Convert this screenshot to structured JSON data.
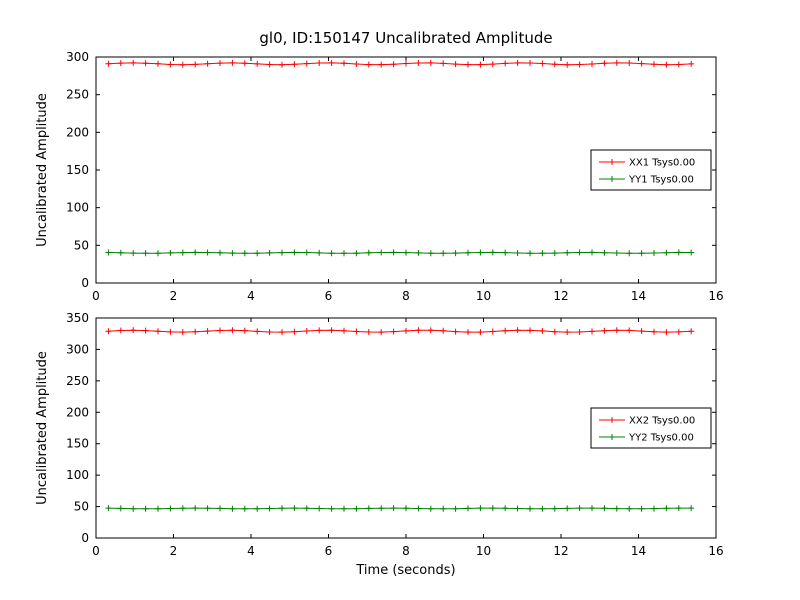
{
  "figure_title": "gl0, ID:150147 Uncalibrated Amplitude",
  "chart_data": [
    {
      "type": "line",
      "title": "gl0, ID:150147 Uncalibrated Amplitude",
      "xlabel": "",
      "ylabel": "Uncalibrated Amplitude",
      "xlim": [
        0,
        16
      ],
      "ylim": [
        0,
        300
      ],
      "xticks": [
        0,
        2,
        4,
        6,
        8,
        10,
        12,
        14,
        16
      ],
      "yticks": [
        0,
        50,
        100,
        150,
        200,
        250,
        300
      ],
      "x_start": 0.32,
      "x_step": 0.32,
      "n_points": 48,
      "grid": false,
      "legend_position": "center right",
      "series": [
        {
          "name": "XX1 Tsys0.00",
          "color": "#ff0000",
          "constant_value": 291,
          "wobble": 1.2
        },
        {
          "name": "YY1 Tsys0.00",
          "color": "#008000",
          "constant_value": 40,
          "wobble": 0.6
        }
      ]
    },
    {
      "type": "line",
      "title": "",
      "xlabel": "Time (seconds)",
      "ylabel": "Uncalibrated Amplitude",
      "xlim": [
        0,
        16
      ],
      "ylim": [
        0,
        350
      ],
      "xticks": [
        0,
        2,
        4,
        6,
        8,
        10,
        12,
        14,
        16
      ],
      "yticks": [
        0,
        50,
        100,
        150,
        200,
        250,
        300,
        350
      ],
      "x_start": 0.32,
      "x_step": 0.32,
      "n_points": 48,
      "grid": false,
      "legend_position": "center right",
      "series": [
        {
          "name": "XX2 Tsys0.00",
          "color": "#ff0000",
          "constant_value": 329,
          "wobble": 1.5
        },
        {
          "name": "YY2 Tsys0.00",
          "color": "#008000",
          "constant_value": 47,
          "wobble": 0.6
        }
      ]
    }
  ]
}
